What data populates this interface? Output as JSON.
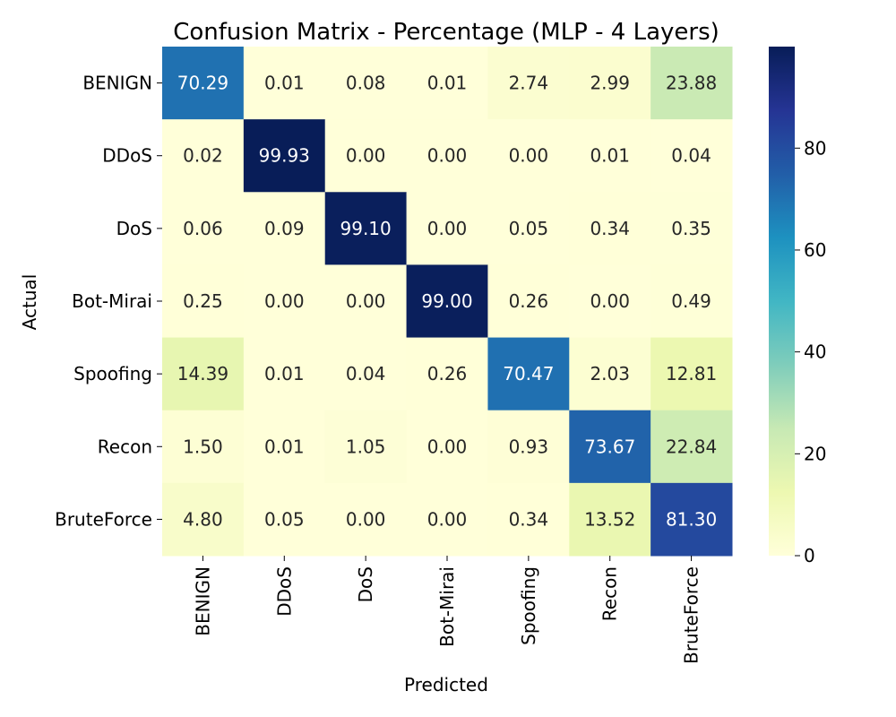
{
  "chart_data": {
    "type": "heatmap",
    "title": "Confusion Matrix - Percentage (MLP - 4 Layers)",
    "xlabel": "Predicted",
    "ylabel": "Actual",
    "x_categories": [
      "BENIGN",
      "DDoS",
      "DoS",
      "Bot-Mirai",
      "Spoofing",
      "Recon",
      "BruteForce"
    ],
    "y_categories": [
      "BENIGN",
      "DDoS",
      "DoS",
      "Bot-Mirai",
      "Spoofing",
      "Recon",
      "BruteForce"
    ],
    "values": [
      [
        70.29,
        0.01,
        0.08,
        0.01,
        2.74,
        2.99,
        23.88
      ],
      [
        0.02,
        99.93,
        0.0,
        0.0,
        0.0,
        0.01,
        0.04
      ],
      [
        0.06,
        0.09,
        99.1,
        0.0,
        0.05,
        0.34,
        0.35
      ],
      [
        0.25,
        0.0,
        0.0,
        99.0,
        0.26,
        0.0,
        0.49
      ],
      [
        14.39,
        0.01,
        0.04,
        0.26,
        70.47,
        2.03,
        12.81
      ],
      [
        1.5,
        0.01,
        1.05,
        0.0,
        0.93,
        73.67,
        22.84
      ],
      [
        4.8,
        0.05,
        0.0,
        0.0,
        0.34,
        13.52,
        81.3
      ]
    ],
    "colorbar": {
      "colormap": "YlGnBu",
      "min": 0,
      "max": 99.93,
      "ticks": [
        0,
        20,
        40,
        60,
        80
      ]
    }
  }
}
